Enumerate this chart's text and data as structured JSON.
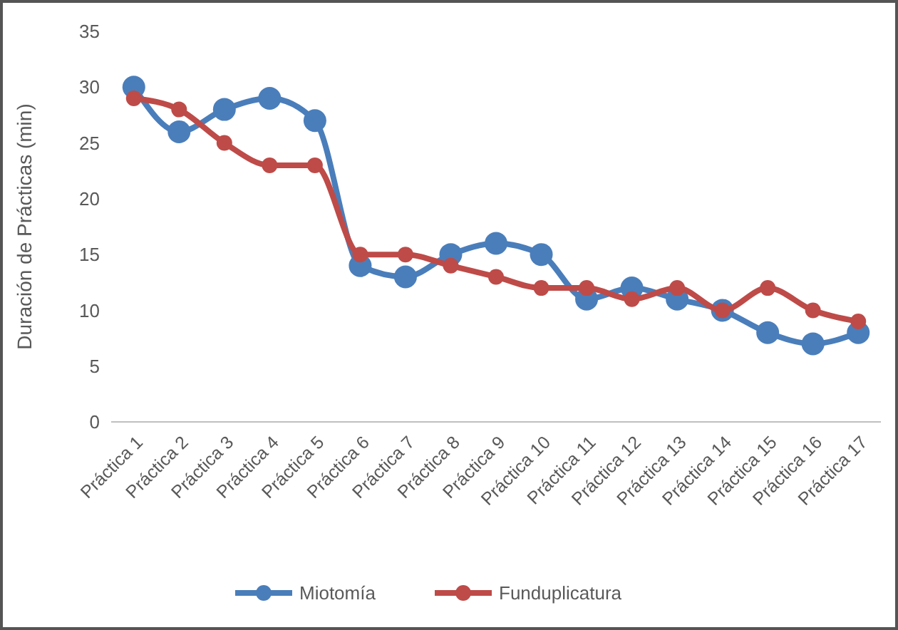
{
  "chart_data": {
    "type": "line",
    "ylabel": "Duración de Prácticas (min)",
    "categories": [
      "Práctica 1",
      "Práctica 2",
      "Práctica 3",
      "Práctica 4",
      "Práctica 5",
      "Práctica 6",
      "Práctica 7",
      "Práctica 8",
      "Práctica 9",
      "Práctica 10",
      "Práctica 11",
      "Práctica 12",
      "Práctica 13",
      "Práctica 14",
      "Práctica 15",
      "Práctica 16",
      "Práctica 17"
    ],
    "series": [
      {
        "name": "Miotomía",
        "color": "#4a7ebb",
        "values": [
          30,
          26,
          28,
          29,
          27,
          14,
          13,
          15,
          16,
          15,
          11,
          12,
          11,
          10,
          8,
          7,
          8
        ]
      },
      {
        "name": "Funduplicatura",
        "color": "#be4b48",
        "values": [
          29,
          28,
          25,
          23,
          23,
          15,
          15,
          14,
          13,
          12,
          12,
          11,
          12,
          10,
          12,
          10,
          9
        ]
      }
    ],
    "ylim": [
      0,
      35
    ],
    "yticks": [
      0,
      5,
      10,
      15,
      20,
      25,
      30,
      35
    ],
    "legend": "bottom",
    "marker": "circle",
    "line_style": "solid"
  }
}
